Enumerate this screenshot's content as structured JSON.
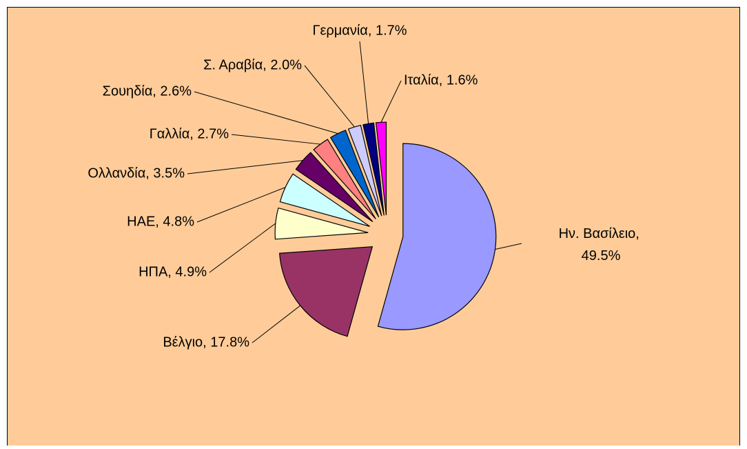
{
  "chart_data": {
    "type": "pie",
    "value_labels": [
      "Ην. Βασίλειο, 49.5%",
      "Βέλγιο, 17.8%",
      "ΗΠΑ, 4.9%",
      "ΗΑΕ, 4.8%",
      "Ολλανδία, 3.5%",
      "Γαλλία, 2.7%",
      "Σουηδία, 2.6%",
      "Σ. Αραβία, 2.0%",
      "Γερμανία, 1.7%",
      "Ιταλία, 1.6%"
    ],
    "values": [
      49.5,
      17.8,
      4.9,
      4.8,
      3.5,
      2.7,
      2.6,
      2.0,
      1.7,
      1.6
    ],
    "colors": [
      "#9999ff",
      "#993366",
      "#ffffcc",
      "#ccffff",
      "#660066",
      "#ff8080",
      "#0066cc",
      "#ccccff",
      "#000080",
      "#ff00ff"
    ]
  }
}
